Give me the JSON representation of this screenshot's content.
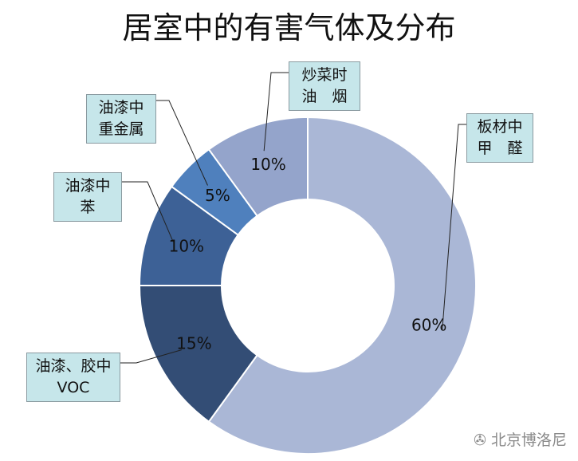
{
  "title": "居室中的有害气体及分布",
  "chart_data": {
    "type": "pie",
    "donut": true,
    "slices": [
      {
        "name": "板材中\n甲　醛",
        "value": 60,
        "label": "60%",
        "color": "#aab7d6"
      },
      {
        "name": "油漆、胶中\nVOC",
        "value": 15,
        "label": "15%",
        "color": "#334d75"
      },
      {
        "name": "油漆中\n苯",
        "value": 10,
        "label": "10%",
        "color": "#3d6196"
      },
      {
        "name": "油漆中\n重金属",
        "value": 5,
        "label": "5%",
        "color": "#4f80bd"
      },
      {
        "name": "炒菜时\n油　烟",
        "value": 10,
        "label": "10%",
        "color": "#94a4cb"
      }
    ]
  },
  "watermark": "北京博洛尼"
}
